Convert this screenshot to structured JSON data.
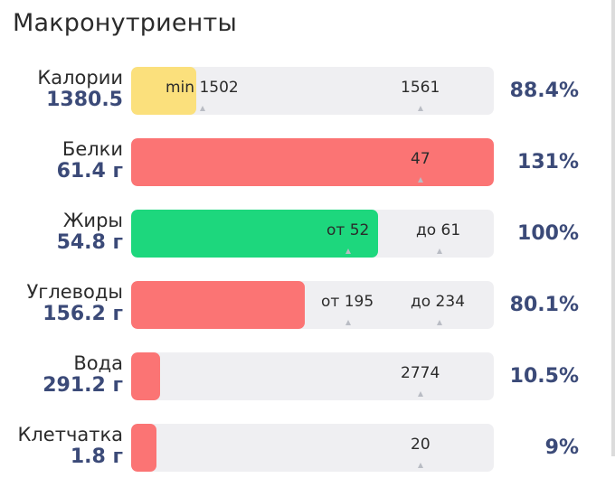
{
  "header": {
    "title": "Макронутриенты"
  },
  "colors": {
    "yellow": "#fbe07c",
    "red": "#fb7474",
    "green": "#1dd77d",
    "track": "#efeff2",
    "value_text": "#3b4a78"
  },
  "nutrients": [
    {
      "name": "Калории",
      "value": "1380.5",
      "percent": "88.4%",
      "fill_color": "#fbe07c",
      "fill_fraction": 0.18,
      "markers": [
        {
          "label": "min 1502"
        },
        {
          "label": "1561"
        }
      ]
    },
    {
      "name": "Белки",
      "value": "61.4 г",
      "percent": "131%",
      "fill_color": "#fb7474",
      "fill_fraction": 1.0,
      "markers": [
        {
          "label": "47"
        }
      ]
    },
    {
      "name": "Жиры",
      "value": "54.8 г",
      "percent": "100%",
      "fill_color": "#1dd77d",
      "fill_fraction": 0.68,
      "markers": [
        {
          "label": "от 52"
        },
        {
          "label": "до 61"
        }
      ]
    },
    {
      "name": "Углеводы",
      "value": "156.2 г",
      "percent": "80.1%",
      "fill_color": "#fb7474",
      "fill_fraction": 0.48,
      "markers": [
        {
          "label": "от 195"
        },
        {
          "label": "до 234"
        }
      ]
    },
    {
      "name": "Вода",
      "value": "291.2 г",
      "percent": "10.5%",
      "fill_color": "#fb7474",
      "fill_fraction": 0.08,
      "markers": [
        {
          "label": "2774"
        }
      ]
    },
    {
      "name": "Клетчатка",
      "value": "1.8 г",
      "percent": "9%",
      "fill_color": "#fb7474",
      "fill_fraction": 0.07,
      "markers": [
        {
          "label": "20"
        }
      ]
    }
  ]
}
